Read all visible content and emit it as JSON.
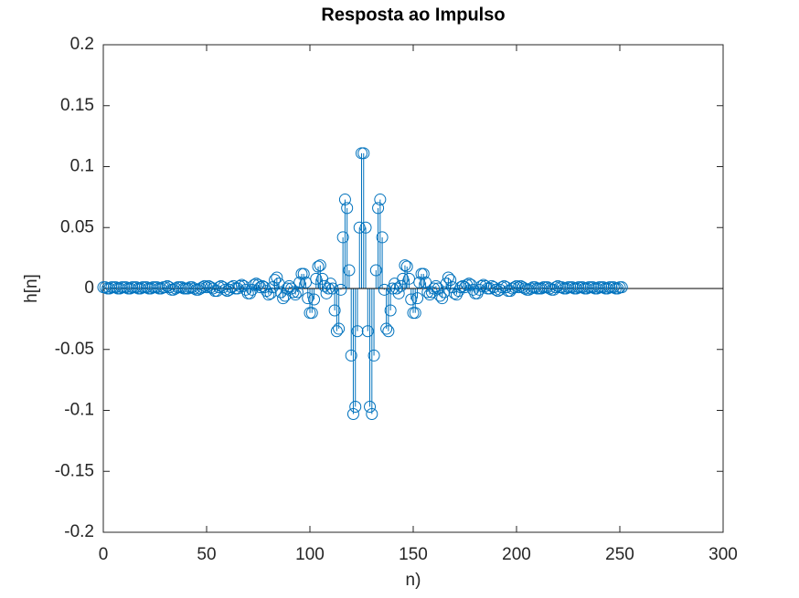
{
  "chart_data": {
    "type": "stem",
    "title": "Resposta ao Impulso",
    "xlabel": "n)",
    "ylabel": "h[n]",
    "xlim": [
      0,
      300
    ],
    "ylim": [
      -0.2,
      0.2
    ],
    "xticks": [
      0,
      50,
      100,
      150,
      200,
      250,
      300
    ],
    "yticks": [
      -0.2,
      -0.15,
      -0.1,
      -0.05,
      0,
      0.05,
      0.1,
      0.15,
      0.2
    ],
    "color": "#0072bd",
    "x": [
      0,
      1,
      2,
      3,
      4,
      5,
      6,
      7,
      8,
      9,
      10,
      11,
      12,
      13,
      14,
      15,
      16,
      17,
      18,
      19,
      20,
      21,
      22,
      23,
      24,
      25,
      26,
      27,
      28,
      29,
      30,
      31,
      32,
      33,
      34,
      35,
      36,
      37,
      38,
      39,
      40,
      41,
      42,
      43,
      44,
      45,
      46,
      47,
      48,
      49,
      50,
      51,
      52,
      53,
      54,
      55,
      56,
      57,
      58,
      59,
      60,
      61,
      62,
      63,
      64,
      65,
      66,
      67,
      68,
      69,
      70,
      71,
      72,
      73,
      74,
      75,
      76,
      77,
      78,
      79,
      80,
      81,
      82,
      83,
      84,
      85,
      86,
      87,
      88,
      89,
      90,
      91,
      92,
      93,
      94,
      95,
      96,
      97,
      98,
      99,
      100,
      101,
      102,
      103,
      104,
      105,
      106,
      107,
      108,
      109,
      110,
      111,
      112,
      113,
      114,
      115,
      116,
      117,
      118,
      119,
      120,
      121,
      122,
      123,
      124,
      125,
      126,
      127,
      128,
      129,
      130,
      131,
      132,
      133,
      134,
      135,
      136,
      137,
      138,
      139,
      140,
      141,
      142,
      143,
      144,
      145,
      146,
      147,
      148,
      149,
      150,
      151,
      152,
      153,
      154,
      155,
      156,
      157,
      158,
      159,
      160,
      161,
      162,
      163,
      164,
      165,
      166,
      167,
      168,
      169,
      170,
      171,
      172,
      173,
      174,
      175,
      176,
      177,
      178,
      179,
      180,
      181,
      182,
      183,
      184,
      185,
      186,
      187,
      188,
      189,
      190,
      191,
      192,
      193,
      194,
      195,
      196,
      197,
      198,
      199,
      200,
      201,
      202,
      203,
      204,
      205,
      206,
      207,
      208,
      209,
      210,
      211,
      212,
      213,
      214,
      215,
      216,
      217,
      218,
      219,
      220,
      221,
      222,
      223,
      224,
      225,
      226,
      227,
      228,
      229,
      230,
      231,
      232,
      233,
      234,
      235,
      236,
      237,
      238,
      239,
      240,
      241,
      242,
      243,
      244,
      245,
      246,
      247,
      248,
      249,
      250,
      251
    ],
    "values": [
      0.001,
      0.001,
      0,
      0,
      0.001,
      0.001,
      0.001,
      0,
      0,
      0.001,
      0.001,
      0.001,
      0,
      0,
      0.001,
      0.001,
      0.001,
      0,
      0,
      0.001,
      0.001,
      0.001,
      0,
      0,
      0.001,
      0.001,
      0.001,
      0,
      0,
      0.001,
      0.001,
      0.002,
      0.001,
      -0.001,
      -0.001,
      0,
      0.001,
      0.001,
      0.001,
      0,
      0,
      0,
      0.001,
      0.001,
      0,
      -0.001,
      -0.001,
      0,
      0.001,
      0.002,
      0.001,
      0.002,
      0.001,
      0,
      -0.002,
      -0.002,
      0.001,
      0.002,
      0.001,
      -0.001,
      -0.002,
      -0.001,
      0.001,
      0.002,
      0,
      0,
      0.002,
      0.003,
      0.002,
      -0.001,
      -0.004,
      -0.004,
      -0.001,
      0.003,
      0.004,
      0.003,
      0.001,
      0.002,
      0.001,
      -0.002,
      -0.005,
      -0.004,
      0.001,
      0.007,
      0.009,
      0.004,
      -0.003,
      -0.008,
      -0.006,
      0,
      0.002,
      0,
      -0.003,
      -0.005,
      -0.003,
      0.005,
      0.012,
      0.012,
      0.005,
      -0.008,
      -0.02,
      -0.02,
      -0.009,
      0.008,
      0.018,
      0.019,
      0.008,
      0.002,
      -0.004,
      0,
      0.004,
      0,
      -0.018,
      -0.035,
      -0.033,
      -0.001,
      0.042,
      0.073,
      0.066,
      0.015,
      -0.055,
      -0.103,
      -0.097,
      -0.035,
      0.05,
      0.111,
      0.111,
      0.05,
      -0.035,
      -0.097,
      -0.103,
      -0.055,
      0.015,
      0.066,
      0.073,
      0.042,
      -0.001,
      -0.033,
      -0.035,
      -0.018,
      0,
      0.004,
      0,
      -0.004,
      0.002,
      0.008,
      0.019,
      0.018,
      0.008,
      -0.009,
      -0.02,
      -0.02,
      -0.008,
      0.005,
      0.012,
      0.012,
      0.005,
      -0.003,
      -0.005,
      -0.003,
      0,
      0.002,
      0,
      -0.006,
      -0.008,
      -0.003,
      0.004,
      0.009,
      0.007,
      0.001,
      -0.004,
      -0.005,
      -0.002,
      0.001,
      0.002,
      0.001,
      0.003,
      0.004,
      0.003,
      -0.001,
      -0.004,
      -0.004,
      -0.001,
      0.002,
      0.003,
      0.002,
      0,
      0,
      0.002,
      0.001,
      -0.001,
      -0.002,
      -0.001,
      0.001,
      0.002,
      0.001,
      -0.002,
      -0.002,
      0,
      0.001,
      0.002,
      0.001,
      0.002,
      0.001,
      0,
      -0.001,
      -0.001,
      0,
      0.001,
      0.001,
      0,
      0,
      0,
      0.001,
      0.001,
      0.001,
      0,
      -0.001,
      -0.001,
      0.001,
      0.002,
      0.001,
      0.001,
      0,
      0,
      0.001,
      0.001,
      0.001,
      0,
      0,
      0.001,
      0.001,
      0.001,
      0,
      0,
      0.001,
      0.001,
      0.001,
      0,
      0,
      0.001,
      0.001,
      0.001,
      0,
      0,
      0.001,
      0.001,
      0.001,
      0,
      0,
      0.001,
      0.001
    ]
  }
}
